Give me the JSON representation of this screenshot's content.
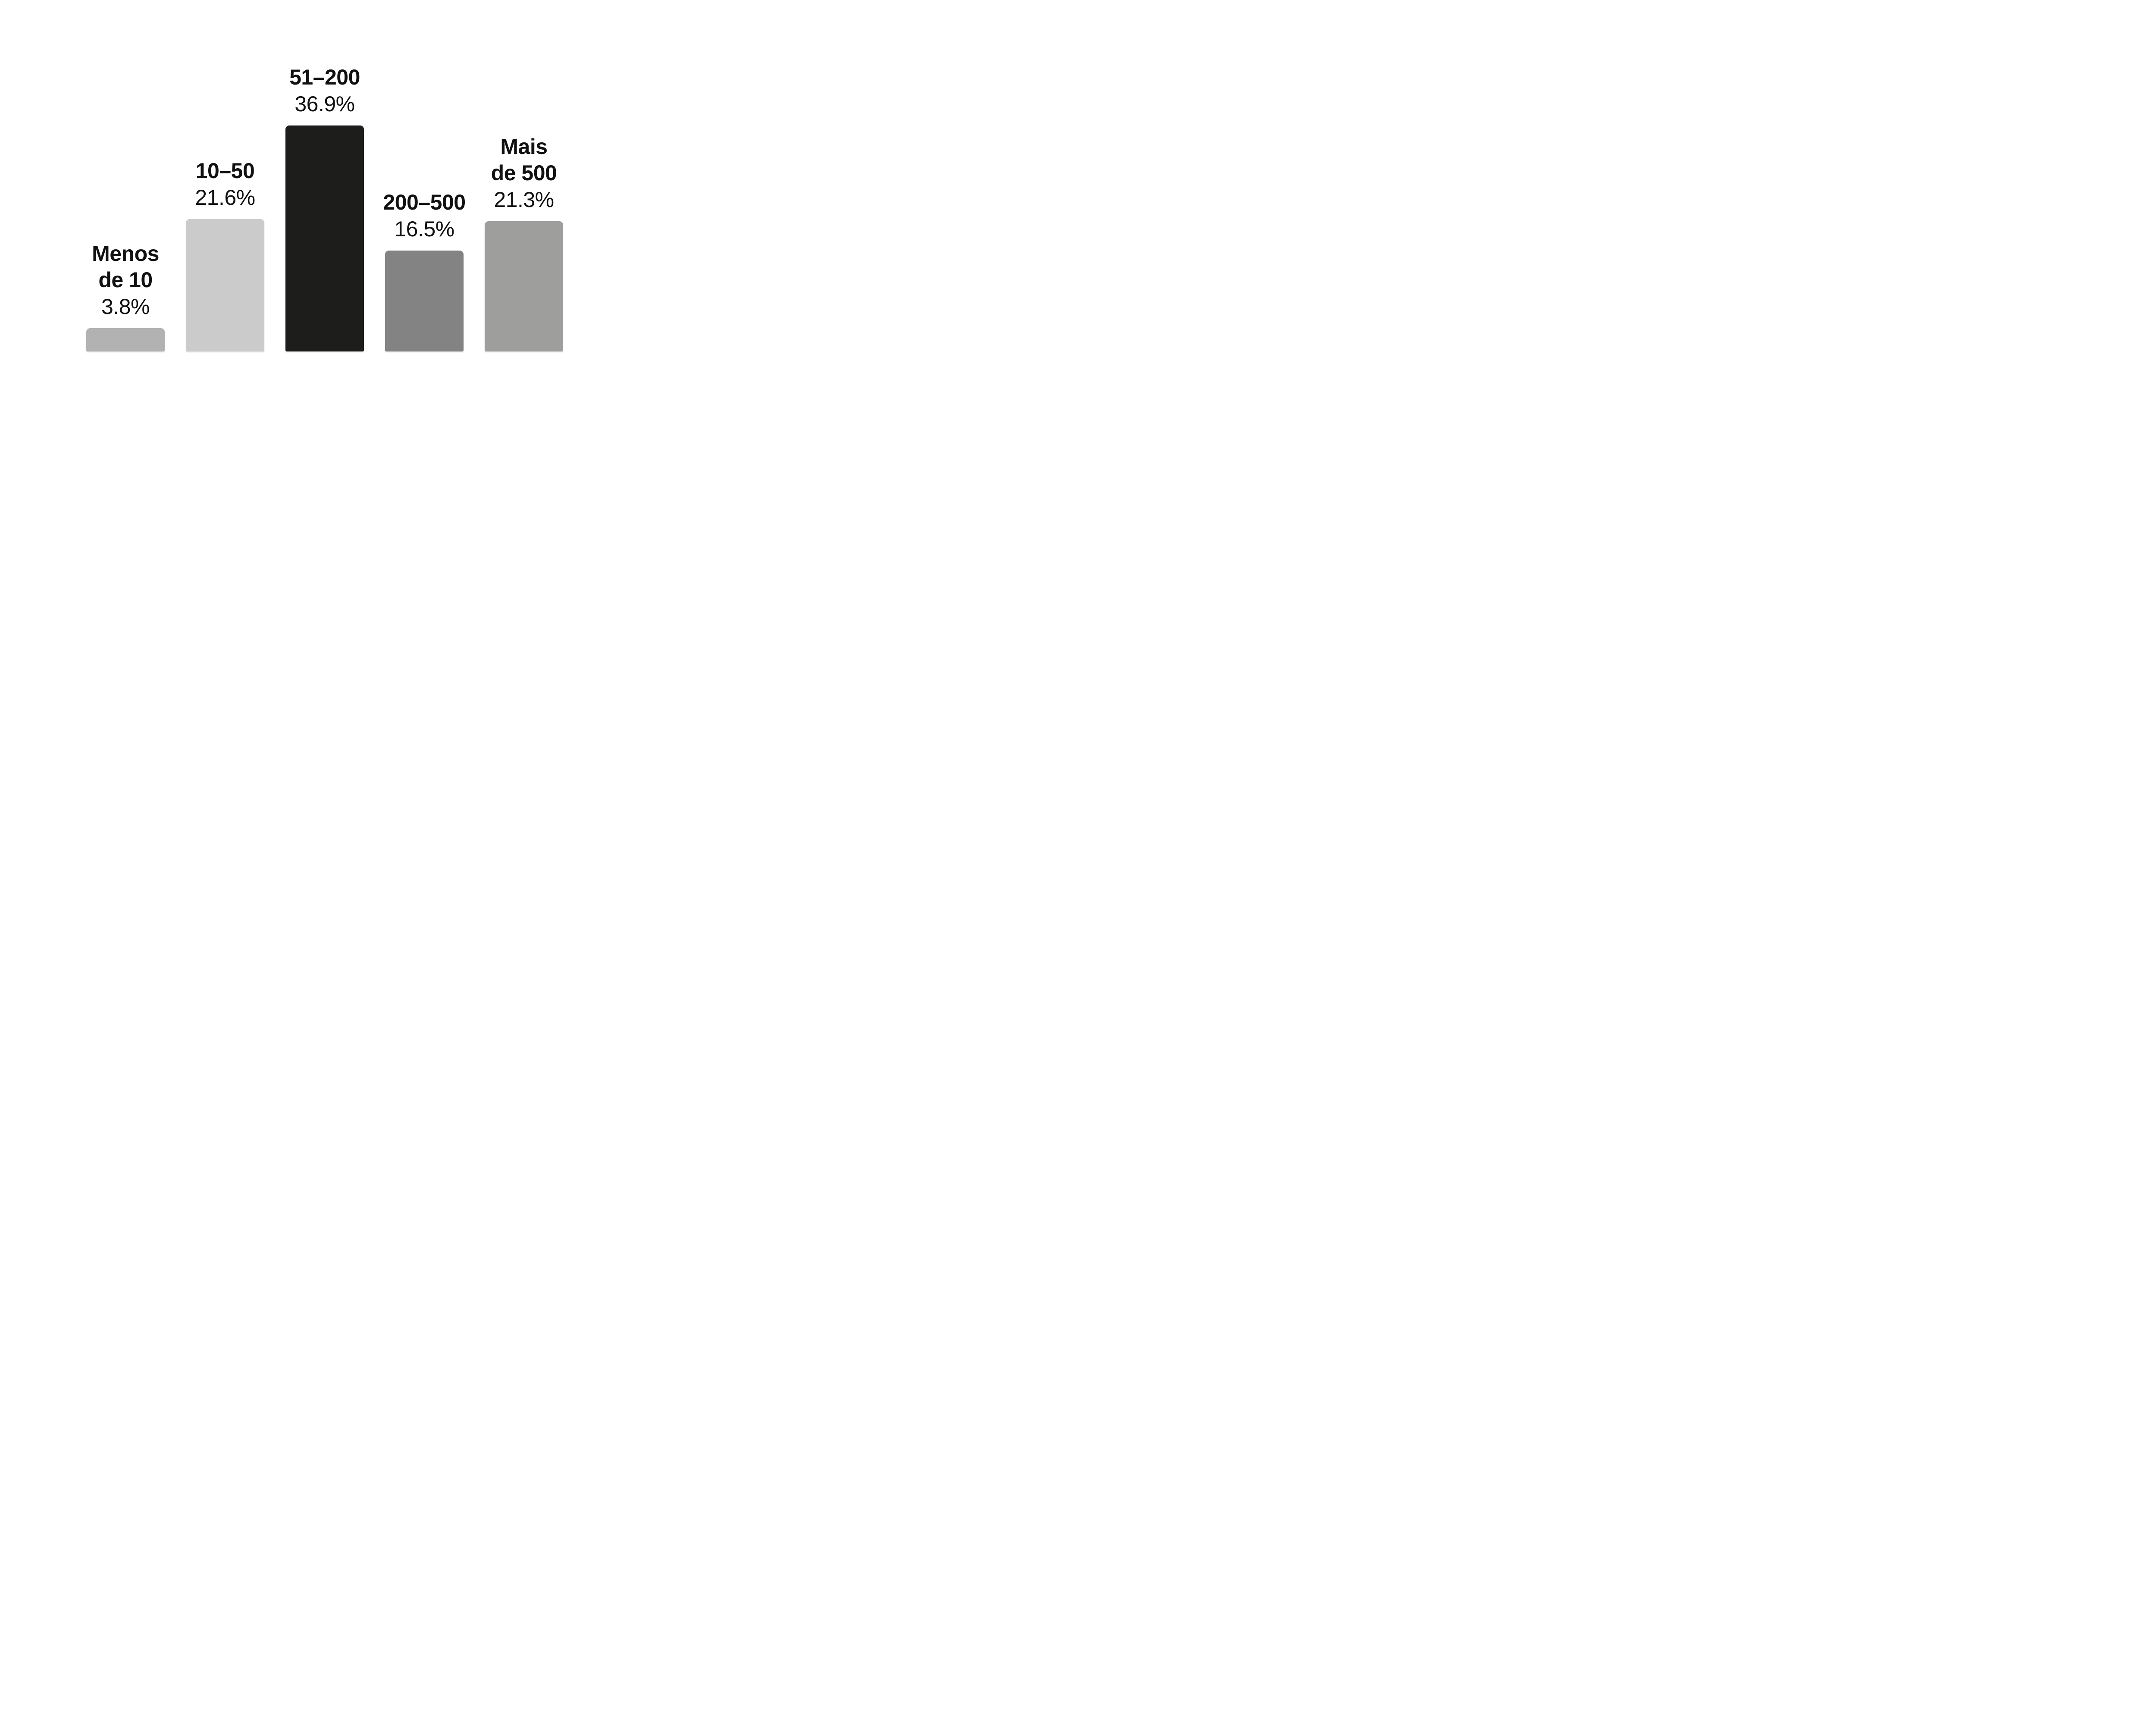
{
  "page": {
    "background_color": "#ffffff",
    "text_color": "#111111"
  },
  "chart_data": {
    "type": "bar",
    "title": "",
    "xlabel": "",
    "ylabel": "",
    "unit": "%",
    "grid": false,
    "legend": false,
    "axes_visible": false,
    "value_label_position": "above-bar",
    "category_label_position": "above-value-label",
    "ylim": [
      0,
      40
    ],
    "categories": [
      "Menos de 10",
      "10–50",
      "51–200",
      "200–500",
      "Mais de 500"
    ],
    "values": [
      3.8,
      21.6,
      36.9,
      16.5,
      21.3
    ],
    "value_labels": [
      "3.8%",
      "21.6%",
      "36.9%",
      "16.5%",
      "21.3%"
    ],
    "bar_colors": [
      "#b2b2b2",
      "#cbcbcb",
      "#1d1d1b",
      "#838383",
      "#9e9e9c"
    ],
    "bars": [
      {
        "category_lines": [
          "Menos",
          "de 10"
        ],
        "value": 3.8,
        "value_label": "3.8%",
        "color": "#b2b2b2"
      },
      {
        "category_lines": [
          "10–50"
        ],
        "value": 21.6,
        "value_label": "21.6%",
        "color": "#cbcbcb"
      },
      {
        "category_lines": [
          "51–200"
        ],
        "value": 36.9,
        "value_label": "36.9%",
        "color": "#1d1d1b"
      },
      {
        "category_lines": [
          "200–500"
        ],
        "value": 16.5,
        "value_label": "16.5%",
        "color": "#838383"
      },
      {
        "category_lines": [
          "Mais",
          "de 500"
        ],
        "value": 21.3,
        "value_label": "21.3%",
        "color": "#9e9e9c"
      }
    ]
  }
}
